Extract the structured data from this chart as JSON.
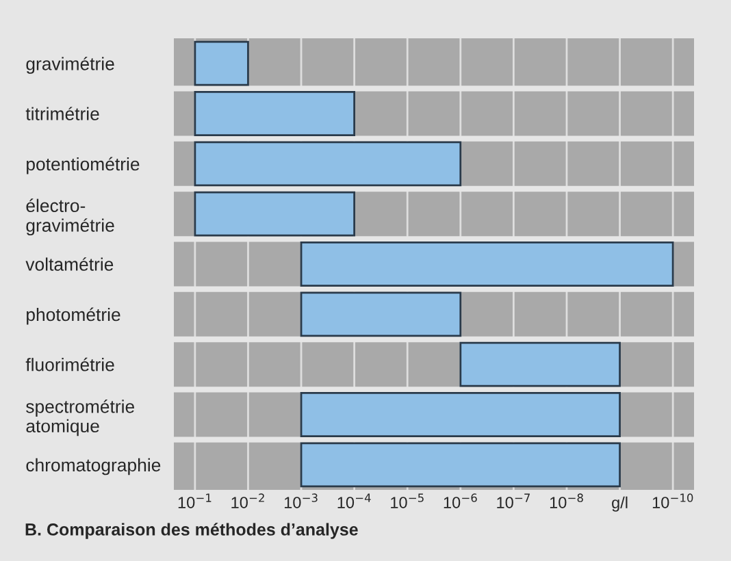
{
  "chart_data": {
    "type": "bar",
    "orientation": "horizontal",
    "title": "B. Comparaison des méthodes d’analyse",
    "categories": [
      "gravimétrie",
      "titrimétrie",
      "potentiométrie",
      "électro-\ngravimétrie",
      "voltamétrie",
      "photométrie",
      "fluorimétrie",
      "spectrométrie\natomique",
      "chromatographie"
    ],
    "base": [
      0.1,
      0.1,
      0.1,
      0.1,
      0.001,
      0.001,
      1e-06,
      0.001,
      0.001
    ],
    "values": [
      -0.09,
      -0.0999,
      -0.099999,
      -0.0999,
      -0.0009999999,
      -0.000999,
      -9.99e-07,
      -0.000999999,
      -0.000999999
    ],
    "log": "x",
    "color": "#8fbfe6",
    "xlim": [
      0.25,
      4e-11
    ],
    "xticks": [
      {
        "value": 0.1,
        "label": "10$^{−1}$"
      },
      {
        "value": 0.01,
        "label": "10$^{−2}$"
      },
      {
        "value": 0.001,
        "label": "10$^{−3}$"
      },
      {
        "value": 0.0001,
        "label": "10$^{−4}$"
      },
      {
        "value": 1e-05,
        "label": "10$^{−5}$"
      },
      {
        "value": 1e-06,
        "label": "10$^{−6}$"
      },
      {
        "value": 1e-07,
        "label": "10$^{−7}$"
      },
      {
        "value": 1e-08,
        "label": "10$^{−8}$"
      },
      {
        "value": 1e-09,
        "label": "g/l"
      },
      {
        "value": 1e-10,
        "label": "10$^{−10}$"
      }
    ],
    "grid": "x"
  }
}
